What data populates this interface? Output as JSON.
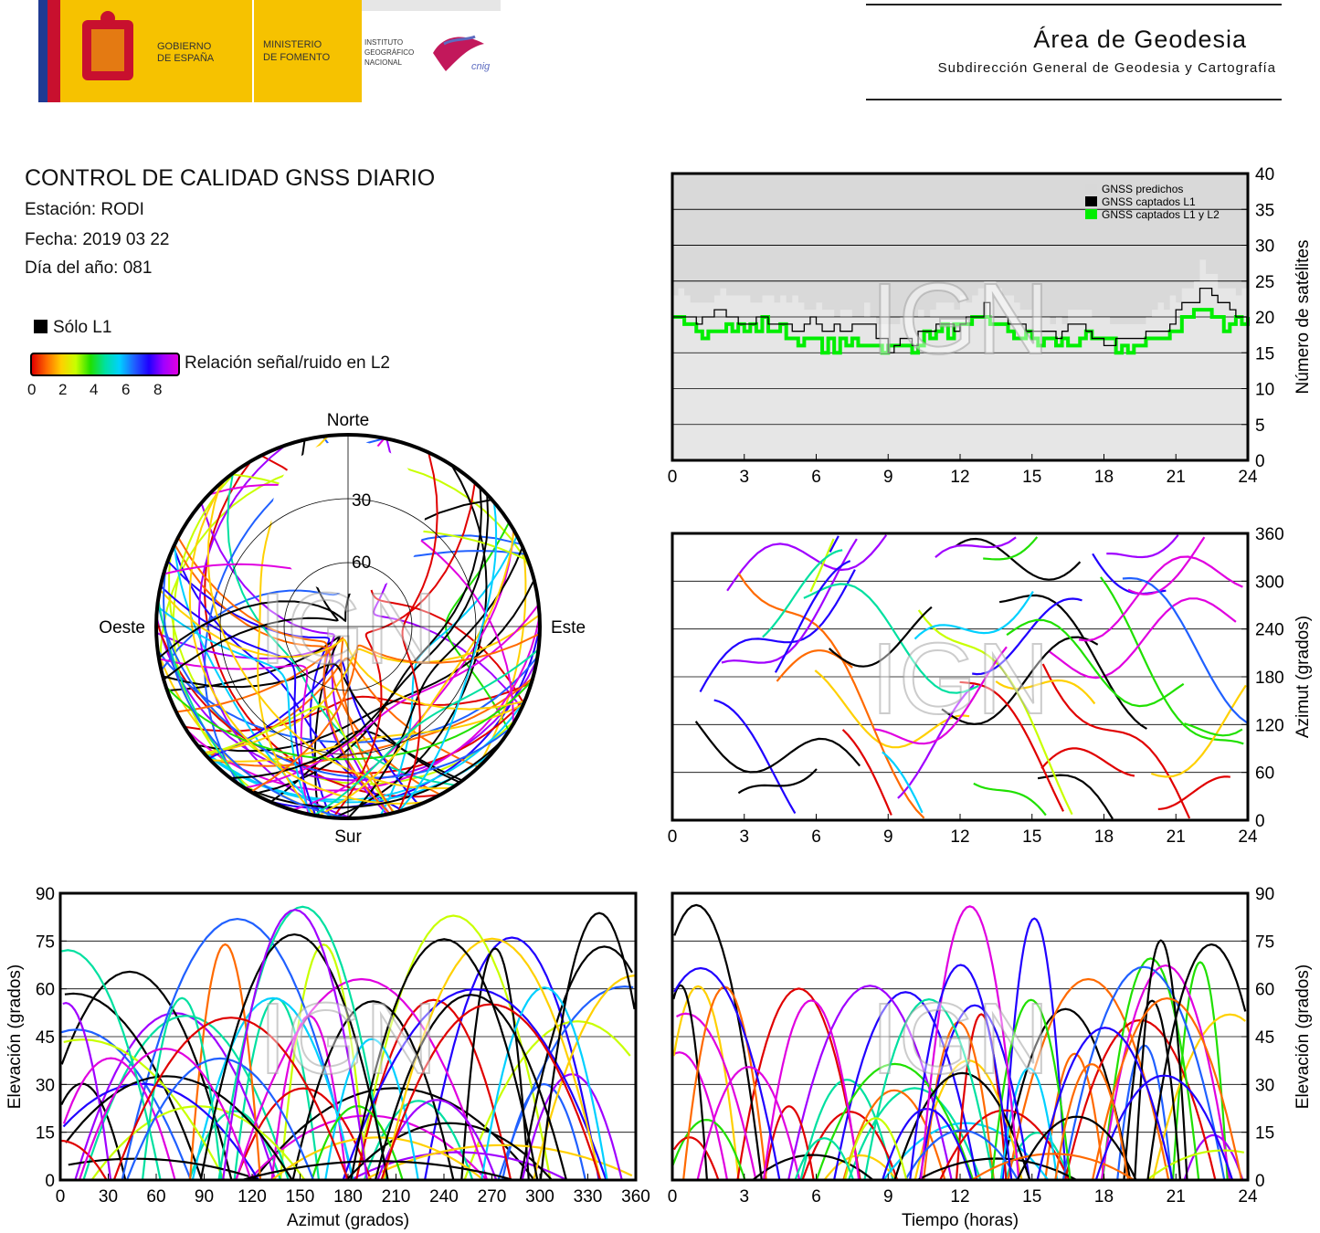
{
  "header": {
    "gobierno": [
      "GOBIERNO",
      "DE ESPAÑA"
    ],
    "ministerio": [
      "MINISTERIO",
      "DE FOMENTO"
    ],
    "instituto": [
      "INSTITUTO",
      "GEOGRÁFICO",
      "NACIONAL"
    ],
    "cnig": "cnig",
    "area_title": "Área de Geodesia",
    "area_subtitle": "Subdirección General de Geodesia y Cartografía"
  },
  "report": {
    "title": "CONTROL DE CALIDAD GNSS DIARIO",
    "station": "Estación: RODI",
    "date": "Fecha: 2019 03 22",
    "doy": "Día del año: 081"
  },
  "legend": {
    "l1_only": "Sólo L1",
    "snr_label": "Relación señal/ruido en L2",
    "snr_ticks": [
      "0",
      "2",
      "4",
      "6",
      "8"
    ],
    "snr_colors": [
      "#e00000",
      "#ff6a00",
      "#ffd000",
      "#c8ff00",
      "#20e000",
      "#00e0a0",
      "#00d0ff",
      "#2060ff",
      "#2000ff",
      "#a000ff",
      "#e000e0"
    ]
  },
  "watermark": "IGN",
  "chart_data": [
    {
      "type": "line",
      "id": "sat-count",
      "ylabel": "Número de satélites",
      "xlim": [
        0,
        24
      ],
      "ylim": [
        0,
        40
      ],
      "xticks": [
        "0",
        "3",
        "6",
        "9",
        "12",
        "15",
        "18",
        "21",
        "24"
      ],
      "yticks": [
        "0",
        "5",
        "10",
        "15",
        "20",
        "25",
        "30",
        "35",
        "40"
      ],
      "legend": [
        "GNSS predichos",
        "GNSS captados L1",
        "GNSS captados L1 y L2"
      ],
      "legend_position": "top-right",
      "colors": {
        "predicted": "#d8d8d8",
        "l1": "#000000",
        "l1l2": "#00ee00"
      },
      "x": [
        0,
        1,
        2,
        3,
        4,
        5,
        6,
        7,
        8,
        9,
        10,
        11,
        12,
        13,
        14,
        15,
        16,
        17,
        18,
        19,
        20,
        21,
        22,
        23,
        24
      ],
      "series": [
        {
          "name": "GNSS predichos",
          "values": [
            24,
            22,
            23,
            22,
            23,
            22,
            21,
            20,
            21,
            19,
            20,
            22,
            22,
            25,
            23,
            20,
            19,
            21,
            19,
            19,
            20,
            23,
            27,
            24,
            23
          ]
        },
        {
          "name": "GNSS captados L1",
          "values": [
            20,
            20,
            20,
            19,
            20,
            19,
            19,
            18,
            19,
            16,
            17,
            19,
            19,
            21,
            20,
            18,
            17,
            19,
            16,
            17,
            17,
            20,
            24,
            21,
            20
          ]
        },
        {
          "name": "GNSS captados L1 y L2",
          "values": [
            19,
            18,
            19,
            18,
            19,
            17,
            16,
            16,
            17,
            15,
            16,
            18,
            18,
            20,
            18,
            17,
            16,
            17,
            16,
            16,
            16,
            19,
            21,
            19,
            20
          ]
        }
      ]
    },
    {
      "type": "scatter",
      "id": "azimuth-time",
      "ylabel": "Azimut (grados)",
      "xlim": [
        0,
        24
      ],
      "ylim": [
        0,
        360
      ],
      "xticks": [
        "0",
        "3",
        "6",
        "9",
        "12",
        "15",
        "18",
        "21",
        "24"
      ],
      "yticks": [
        "0",
        "60",
        "120",
        "180",
        "240",
        "300",
        "360"
      ]
    },
    {
      "type": "scatter",
      "id": "elevation-azimuth",
      "xlabel": "Azimut (grados)",
      "ylabel": "Elevación (grados)",
      "xlim": [
        0,
        360
      ],
      "ylim": [
        0,
        90
      ],
      "xticks": [
        "0",
        "30",
        "60",
        "90",
        "120",
        "150",
        "180",
        "210",
        "240",
        "270",
        "300",
        "330",
        "360"
      ],
      "yticks": [
        "0",
        "15",
        "30",
        "45",
        "60",
        "75",
        "90"
      ]
    },
    {
      "type": "scatter",
      "id": "elevation-time",
      "xlabel": "Tiempo (horas)",
      "ylabel": "Elevación (grados)",
      "xlim": [
        0,
        24
      ],
      "ylim": [
        0,
        90
      ],
      "xticks": [
        "0",
        "3",
        "6",
        "9",
        "12",
        "15",
        "18",
        "21",
        "24"
      ],
      "yticks": [
        "0",
        "15",
        "30",
        "45",
        "60",
        "75",
        "90"
      ]
    },
    {
      "type": "scatter",
      "id": "skyplot",
      "labels": {
        "n": "Norte",
        "s": "Sur",
        "e": "Este",
        "w": "Oeste"
      },
      "rings": [
        "30",
        "60"
      ]
    }
  ]
}
